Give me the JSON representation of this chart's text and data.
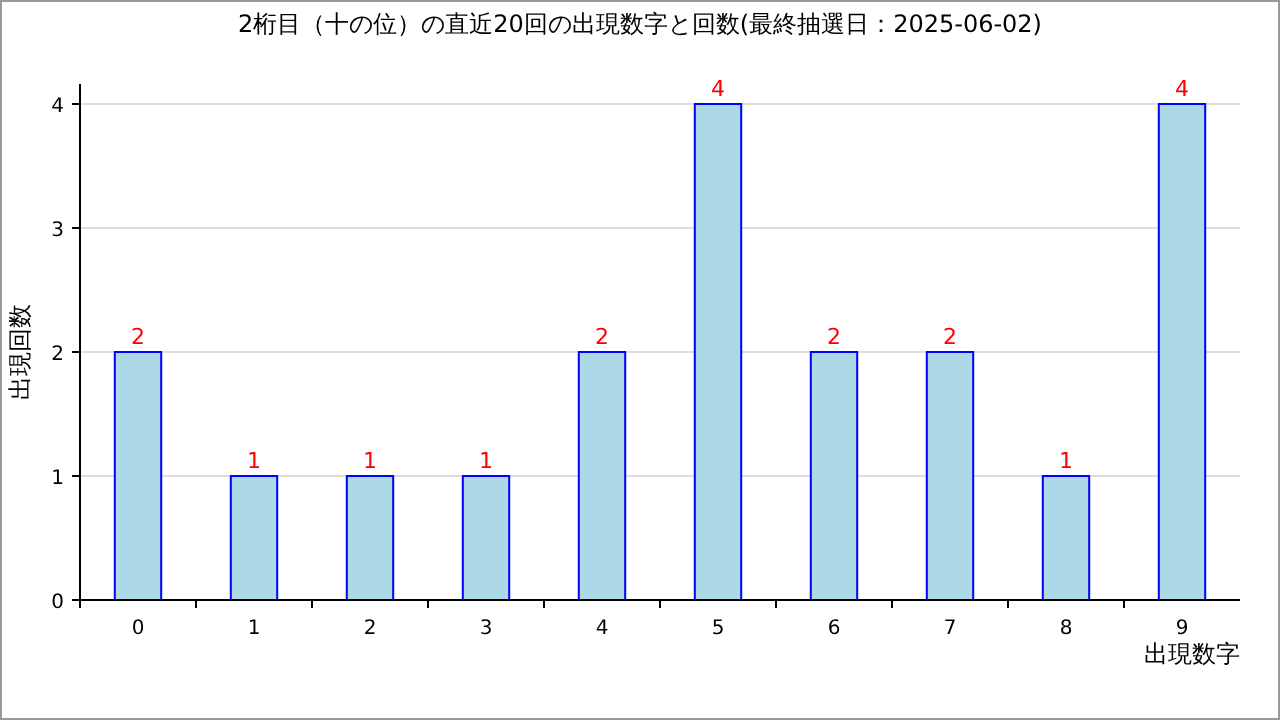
{
  "chart_data": {
    "type": "bar",
    "title": "2桁目（十の位）の直近20回の出現数字と回数(最終抽選日：2025-06-02)",
    "xlabel": "出現数字",
    "ylabel": "出現回数",
    "categories": [
      "0",
      "1",
      "2",
      "3",
      "4",
      "5",
      "6",
      "7",
      "8",
      "9"
    ],
    "values": [
      2,
      1,
      1,
      1,
      2,
      4,
      2,
      2,
      1,
      4
    ],
    "color": "#add8e6",
    "ylim": [
      0,
      4
    ],
    "yticks": [
      0,
      1,
      2,
      3,
      4
    ],
    "grid": "y",
    "data_labels": true
  }
}
